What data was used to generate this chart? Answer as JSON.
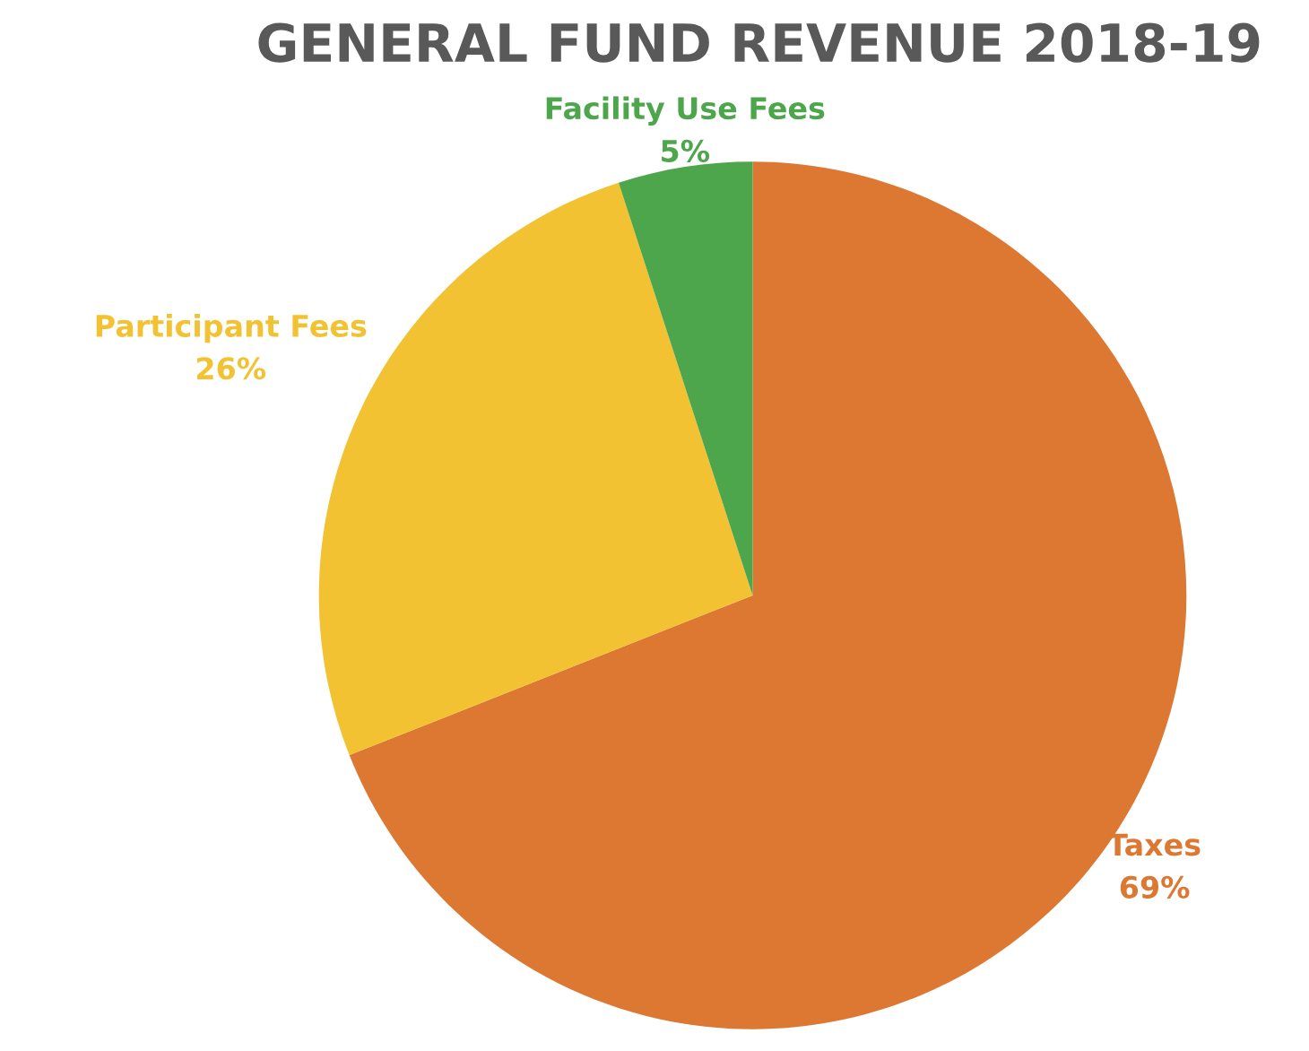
{
  "chart_data": {
    "type": "pie",
    "title": "GENERAL FUND REVENUE 2018-19",
    "categories": [
      "Taxes",
      "Participant Fees",
      "Facility Use Fees"
    ],
    "values": [
      69,
      26,
      5
    ],
    "colors": [
      "#dc7832",
      "#f2c232",
      "#4ea64c"
    ],
    "value_labels": [
      "69%",
      "26%",
      "5%"
    ]
  }
}
